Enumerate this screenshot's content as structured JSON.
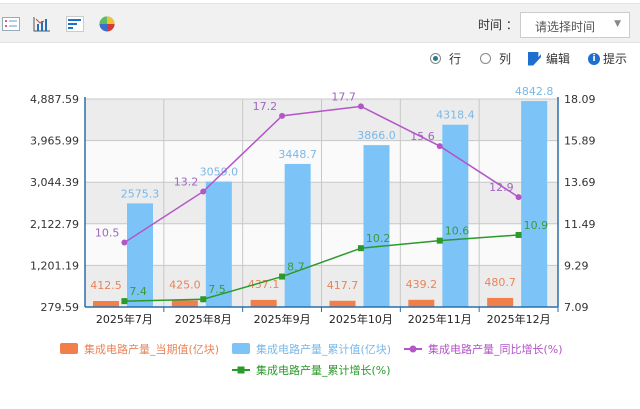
{
  "toolbar": {
    "icons": [
      "list-icon",
      "bar-chart-icon",
      "horizontal-bar-icon",
      "pie-chart-icon"
    ],
    "time_label": "时间 ：",
    "time_placeholder": "请选择时间"
  },
  "options": {
    "row_label": "行",
    "col_label": "列",
    "edit_label": "编辑",
    "tip_label": "提示",
    "row_selected": true
  },
  "chart_data": {
    "type": "bar+line",
    "categories": [
      "2025年7月",
      "2025年8月",
      "2025年9月",
      "2025年10月",
      "2025年11月",
      "2025年12月"
    ],
    "left_axis": {
      "ticks": [
        "279.59",
        "1,201.19",
        "2,122.79",
        "3,044.39",
        "3,965.99",
        "4,887.59"
      ],
      "range": [
        279.59,
        4887.59
      ]
    },
    "right_axis": {
      "ticks": [
        "7.09",
        "9.29",
        "11.49",
        "13.69",
        "15.89",
        "18.09"
      ],
      "range": [
        7.09,
        18.09
      ]
    },
    "series": [
      {
        "name": "集成电路产量_当期值(亿块)",
        "type": "bar",
        "axis": "left",
        "color": "#f07f4a",
        "values": [
          412.5,
          425.0,
          437.1,
          417.7,
          439.2,
          480.7
        ],
        "labels": [
          "412.5",
          "425.0",
          "437.1",
          "417.7",
          "439.2",
          "480.7"
        ]
      },
      {
        "name": "集成电路产量_累计值(亿块)",
        "type": "bar",
        "axis": "left",
        "color": "#7cc4f8",
        "values": [
          2575.3,
          3059.0,
          3448.7,
          3866.0,
          4318.4,
          4842.8
        ],
        "labels": [
          "2575.3",
          "3059.0",
          "3448.7",
          "3866.0",
          "4318.4",
          "4842.8"
        ]
      },
      {
        "name": "集成电路产量_同比增长(%)",
        "type": "line",
        "axis": "right",
        "color": "#b455c8",
        "values": [
          10.5,
          13.2,
          17.2,
          17.7,
          15.6,
          12.9
        ],
        "labels": [
          "10.5",
          "13.2",
          "17.2",
          "17.7",
          "15.6",
          "12.9"
        ]
      },
      {
        "name": "集成电路产量_累计增长(%)",
        "type": "line",
        "axis": "right",
        "color": "#2a9a2a",
        "values": [
          7.4,
          7.5,
          8.7,
          10.2,
          10.6,
          10.9
        ],
        "labels": [
          "7.4",
          "7.5",
          "8.7",
          "10.2",
          "10.6",
          "10.9"
        ]
      }
    ],
    "grid": true,
    "legend": "bottom"
  }
}
